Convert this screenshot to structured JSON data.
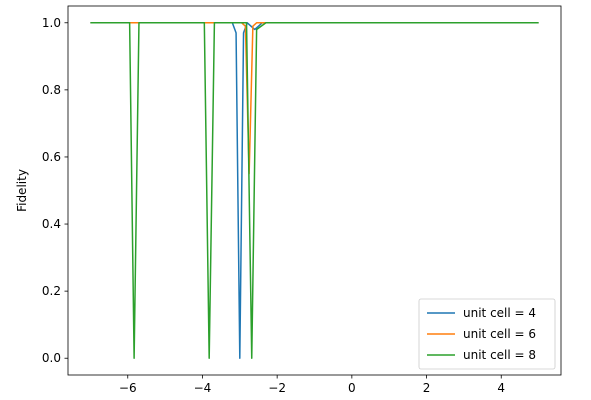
{
  "chart_data": {
    "type": "line",
    "title": "",
    "xlabel": "",
    "ylabel": "Fidelity",
    "xlim": [
      -7.6,
      5.6
    ],
    "ylim": [
      -0.05,
      1.05
    ],
    "xticks": [
      -6,
      -4,
      -2,
      0,
      2,
      4
    ],
    "xtick_labels": [
      "−6",
      "−4",
      "−2",
      "0",
      "2",
      "4"
    ],
    "yticks": [
      0.0,
      0.2,
      0.4,
      0.6,
      0.8,
      1.0
    ],
    "ytick_labels": [
      "0.0",
      "0.2",
      "0.4",
      "0.6",
      "0.8",
      "1.0"
    ],
    "grid": false,
    "legend_position": "bottom-right",
    "series": [
      {
        "name": "unit cell = 4",
        "color": "#1f77b4",
        "x": [
          -7.0,
          -3.2,
          -3.1,
          -3.0,
          -2.9,
          -2.8,
          -2.7,
          -2.6,
          -2.5,
          -2.4,
          5.0
        ],
        "y": [
          1.0,
          1.0,
          0.97,
          0.0,
          0.97,
          1.0,
          0.99,
          0.98,
          0.99,
          1.0,
          1.0
        ]
      },
      {
        "name": "unit cell = 6",
        "color": "#ff7f0e",
        "x": [
          -7.0,
          -2.95,
          -2.85,
          -2.75,
          -2.65,
          -2.55,
          -2.45,
          5.0
        ],
        "y": [
          1.0,
          1.0,
          0.99,
          0.55,
          0.99,
          1.0,
          1.0,
          1.0
        ],
        "x_spike": null
      },
      {
        "name": "unit cell = 8",
        "color": "#2ca02c",
        "x": [
          -7.0,
          -5.95,
          -5.83,
          -5.7,
          -3.95,
          -3.82,
          -3.68,
          -2.82,
          -2.68,
          -2.55,
          -2.3,
          5.0
        ],
        "y": [
          1.0,
          1.0,
          0.0,
          1.0,
          1.0,
          0.0,
          1.0,
          1.0,
          0.0,
          0.98,
          1.0,
          1.0
        ]
      }
    ]
  }
}
